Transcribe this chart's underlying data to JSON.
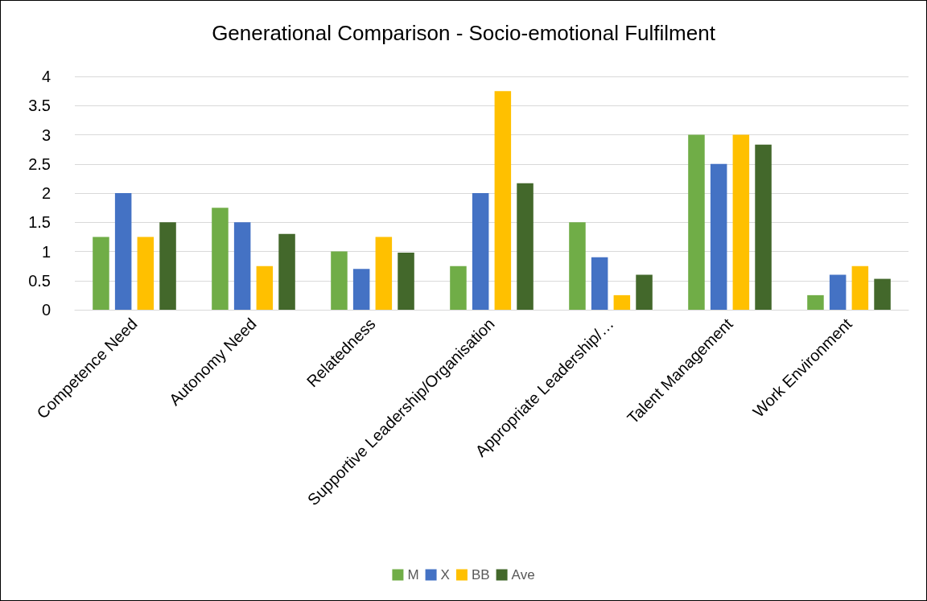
{
  "chart_data": {
    "type": "bar",
    "title": "Generational Comparison - Socio-emotional Fulfilment",
    "categories": [
      "Competence Need",
      "Autonomy Need",
      "Relatedness",
      "Supportive Leadership/Organisation",
      "Appropriate Leadership/…",
      "Talent Management",
      "Work Environment"
    ],
    "series": [
      {
        "name": "M",
        "color": "#70ad47",
        "values": [
          1.25,
          1.75,
          1.0,
          0.75,
          1.5,
          3.0,
          0.25
        ]
      },
      {
        "name": "X",
        "color": "#4472c4",
        "values": [
          2.0,
          1.5,
          0.7,
          2.0,
          0.9,
          2.5,
          0.6
        ]
      },
      {
        "name": "BB",
        "color": "#ffc000",
        "values": [
          1.25,
          0.75,
          1.25,
          3.75,
          0.25,
          3.0,
          0.75
        ]
      },
      {
        "name": "Ave",
        "color": "#43682b",
        "values": [
          1.5,
          1.3,
          0.98,
          2.17,
          0.6,
          2.83,
          0.53
        ]
      }
    ],
    "ylim": [
      0,
      4
    ],
    "yticks": [
      0,
      0.5,
      1,
      1.5,
      2,
      2.5,
      3,
      3.5,
      4
    ],
    "grid": "y",
    "legend": "bottom"
  }
}
